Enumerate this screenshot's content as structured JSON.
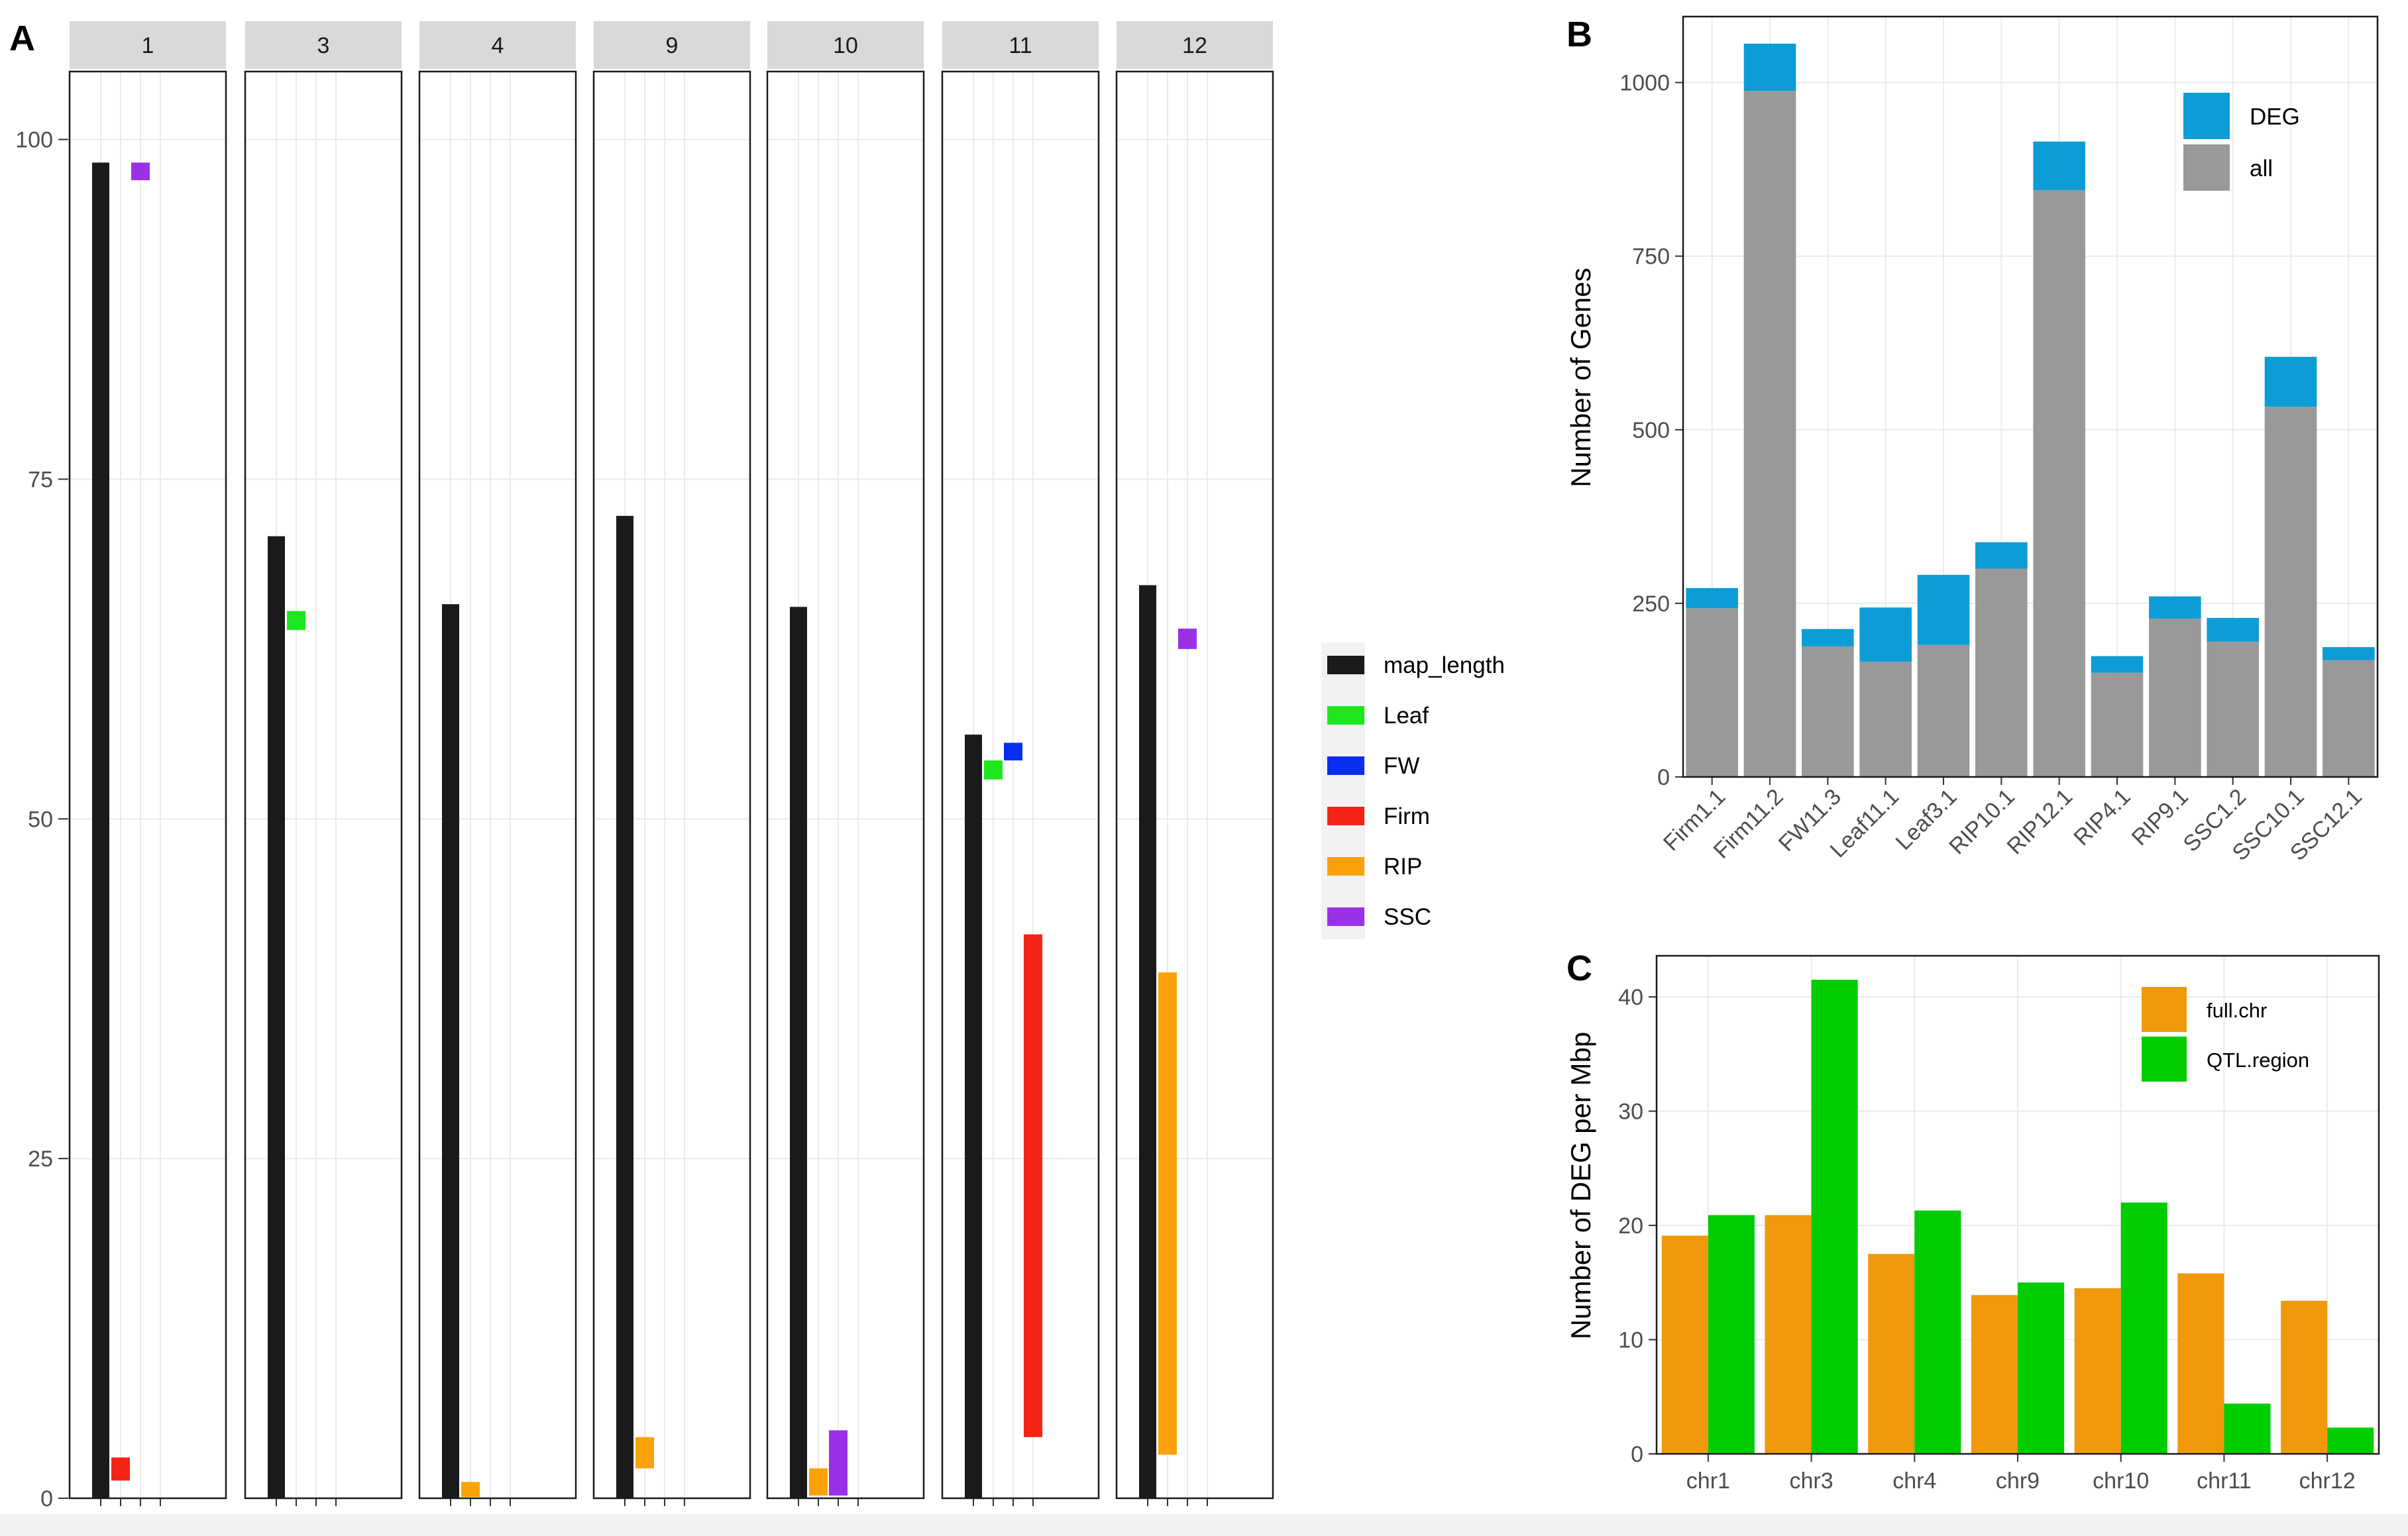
{
  "figure_labels": {
    "a": "A",
    "b": "B",
    "c": "C"
  },
  "chart_data": [
    {
      "id": "A",
      "type": "bar",
      "subtype": "faceted-interval",
      "facets": [
        "1",
        "3",
        "4",
        "9",
        "10",
        "11",
        "12"
      ],
      "ylim": [
        0,
        105
      ],
      "yticks": [
        0,
        25,
        50,
        75,
        100
      ],
      "grid": true,
      "series_order": [
        "map_length",
        "Leaf",
        "FW",
        "Firm",
        "RIP",
        "SSC"
      ],
      "colors": {
        "map_length": "#1a1a1a",
        "Leaf": "#1ee61e",
        "FW": "#0a2ef0",
        "Firm": "#f52314",
        "RIP": "#fba20a",
        "SSC": "#9b31e6"
      },
      "legend": {
        "position": "right",
        "entries": [
          {
            "key": "map_length",
            "label": "map_length"
          },
          {
            "key": "Leaf",
            "label": "Leaf"
          },
          {
            "key": "FW",
            "label": "FW"
          },
          {
            "key": "Firm",
            "label": "Firm"
          },
          {
            "key": "RIP",
            "label": "RIP"
          },
          {
            "key": "SSC",
            "label": "SSC"
          }
        ]
      },
      "intervals": [
        {
          "facet": "1",
          "series": "map_length",
          "slot": 0,
          "start": 0,
          "end": 98.3
        },
        {
          "facet": "1",
          "series": "Firm",
          "slot": 1,
          "start": 1.3,
          "end": 3.0
        },
        {
          "facet": "1",
          "series": "SSC",
          "slot": 2,
          "start": 97.0,
          "end": 98.3
        },
        {
          "facet": "3",
          "series": "map_length",
          "slot": 0,
          "start": 0,
          "end": 70.8
        },
        {
          "facet": "3",
          "series": "Leaf",
          "slot": 1,
          "start": 63.9,
          "end": 65.3
        },
        {
          "facet": "4",
          "series": "map_length",
          "slot": 0,
          "start": 0,
          "end": 65.8
        },
        {
          "facet": "4",
          "series": "RIP",
          "slot": 1,
          "start": 0.1,
          "end": 1.2
        },
        {
          "facet": "9",
          "series": "map_length",
          "slot": 0,
          "start": 0,
          "end": 72.3
        },
        {
          "facet": "9",
          "series": "RIP",
          "slot": 1,
          "start": 2.2,
          "end": 4.5
        },
        {
          "facet": "10",
          "series": "map_length",
          "slot": 0,
          "start": 0,
          "end": 65.6
        },
        {
          "facet": "10",
          "series": "RIP",
          "slot": 1,
          "start": 0.2,
          "end": 2.2
        },
        {
          "facet": "10",
          "series": "SSC",
          "slot": 2,
          "start": 0.2,
          "end": 5.0
        },
        {
          "facet": "11",
          "series": "map_length",
          "slot": 0,
          "start": 0,
          "end": 56.2
        },
        {
          "facet": "11",
          "series": "Leaf",
          "slot": 1,
          "start": 52.9,
          "end": 54.3
        },
        {
          "facet": "11",
          "series": "FW",
          "slot": 2,
          "start": 54.3,
          "end": 55.6
        },
        {
          "facet": "11",
          "series": "Firm",
          "slot": 3,
          "start": 4.5,
          "end": 41.5
        },
        {
          "facet": "12",
          "series": "map_length",
          "slot": 0,
          "start": 0,
          "end": 67.2
        },
        {
          "facet": "12",
          "series": "RIP",
          "slot": 1,
          "start": 3.2,
          "end": 38.7
        },
        {
          "facet": "12",
          "series": "SSC",
          "slot": 2,
          "start": 62.5,
          "end": 64.0
        }
      ]
    },
    {
      "id": "B",
      "type": "bar",
      "subtype": "stacked",
      "categories": [
        "Firm1.1",
        "Firm11.2",
        "FW11.3",
        "Leaf11.1",
        "Leaf3.1",
        "RIP10.1",
        "RIP12.1",
        "RIP4.1",
        "RIP9.1",
        "SSC1.2",
        "SSC10.1",
        "SSC12.1"
      ],
      "series": [
        {
          "name": "all",
          "color": "#999999",
          "values": [
            243,
            988,
            188,
            166,
            190,
            300,
            845,
            150,
            228,
            195,
            533,
            168
          ]
        },
        {
          "name": "DEG",
          "color": "#0c9dd6",
          "values": [
            29,
            68,
            25,
            78,
            101,
            38,
            70,
            24,
            32,
            34,
            72,
            19
          ]
        }
      ],
      "ylabel": "Number of Genes",
      "xlabel": "",
      "ylim": [
        0,
        1095
      ],
      "yticks": [
        0,
        250,
        500,
        750,
        1000
      ],
      "grid": true,
      "legend": {
        "position": "top-right",
        "entries": [
          {
            "key": "DEG",
            "label": "DEG"
          },
          {
            "key": "all",
            "label": "all"
          }
        ]
      }
    },
    {
      "id": "C",
      "type": "bar",
      "subtype": "grouped",
      "categories": [
        "chr1",
        "chr3",
        "chr4",
        "chr9",
        "chr10",
        "chr11",
        "chr12"
      ],
      "series": [
        {
          "name": "full.chr",
          "color": "#f0990a",
          "values": [
            19.1,
            20.9,
            17.5,
            13.9,
            14.5,
            15.8,
            13.4
          ]
        },
        {
          "name": "QTL.region",
          "color": "#00cc00",
          "values": [
            20.9,
            41.5,
            21.3,
            15.0,
            22.0,
            4.4,
            2.3
          ]
        }
      ],
      "ylabel": "Number of DEG per Mbp",
      "xlabel": "",
      "ylim": [
        0,
        43.6
      ],
      "yticks": [
        0,
        10,
        20,
        30,
        40
      ],
      "grid": true,
      "legend": {
        "position": "top-right",
        "entries": [
          {
            "key": "full.chr",
            "label": "full.chr"
          },
          {
            "key": "QTL.region",
            "label": "QTL.region"
          }
        ]
      }
    }
  ]
}
